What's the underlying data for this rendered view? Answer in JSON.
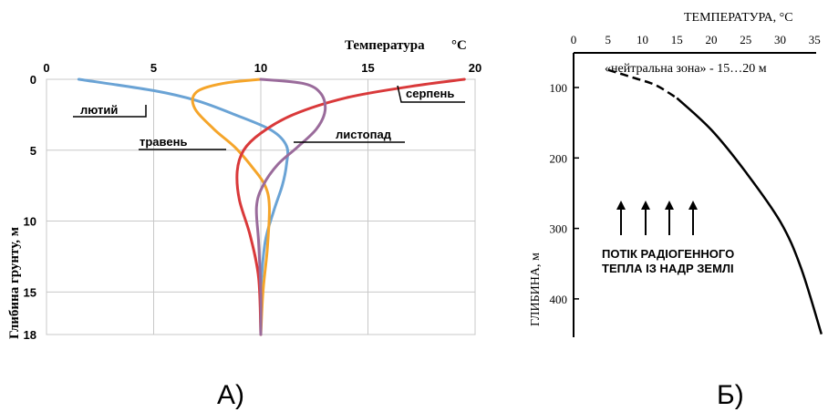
{
  "chart_data": [
    {
      "type": "line",
      "panel_label": "А)",
      "title": "Температура",
      "title_unit": "°C",
      "ylabel": "Глибина грунту, м",
      "xlim": [
        0,
        20
      ],
      "ylim": [
        18,
        0
      ],
      "x_ticks": [
        "0",
        "5",
        "10",
        "15",
        "20"
      ],
      "y_ticks": [
        "0",
        "5",
        "10",
        "15",
        "18"
      ],
      "grid": true,
      "series": [
        {
          "name": "лютий",
          "color": "#6aa3d5",
          "points": [
            [
              1.5,
              0
            ],
            [
              5,
              0.8
            ],
            [
              7,
              1.5
            ],
            [
              8.8,
              2.5
            ],
            [
              10.5,
              3.6
            ],
            [
              11.2,
              4.7
            ],
            [
              11.2,
              6
            ],
            [
              11,
              7.5
            ],
            [
              10.6,
              9.3
            ],
            [
              10.2,
              11.5
            ],
            [
              10,
              15
            ],
            [
              10,
              18
            ]
          ]
        },
        {
          "name": "травень",
          "color": "#f5a52a",
          "points": [
            [
              10,
              0
            ],
            [
              8.2,
              0.3
            ],
            [
              7,
              0.9
            ],
            [
              6.9,
              2
            ],
            [
              7.8,
              3.5
            ],
            [
              8.8,
              4.8
            ],
            [
              9.6,
              6.2
            ],
            [
              10.2,
              7.5
            ],
            [
              10.4,
              9
            ],
            [
              10.3,
              12
            ],
            [
              10.1,
              15
            ],
            [
              10,
              18
            ]
          ]
        },
        {
          "name": "серпень",
          "color": "#d9393a",
          "points": [
            [
              19.5,
              0
            ],
            [
              17,
              0.5
            ],
            [
              14,
              1.3
            ],
            [
              11.5,
              2.5
            ],
            [
              10,
              3.8
            ],
            [
              9.2,
              5
            ],
            [
              8.9,
              6.5
            ],
            [
              9,
              8.5
            ],
            [
              9.5,
              11
            ],
            [
              9.9,
              14
            ],
            [
              10,
              18
            ]
          ]
        },
        {
          "name": "листопад",
          "color": "#9a6b9b",
          "points": [
            [
              10,
              0
            ],
            [
              12,
              0.3
            ],
            [
              12.8,
              1
            ],
            [
              13,
              2.2
            ],
            [
              12.6,
              3.5
            ],
            [
              11.7,
              4.8
            ],
            [
              10.8,
              6
            ],
            [
              10.1,
              7.5
            ],
            [
              9.8,
              9
            ],
            [
              9.9,
              11.5
            ],
            [
              10,
              15
            ],
            [
              10,
              18
            ]
          ]
        }
      ]
    },
    {
      "type": "line",
      "panel_label": "Б)",
      "title": "ТЕМПЕРАТУРА, °С",
      "ylabel": "ГЛИБИНА, м",
      "xlim": [
        0,
        37
      ],
      "ylim": [
        450,
        50
      ],
      "x_ticks": [
        "0",
        "5",
        "10",
        "15",
        "20",
        "25",
        "30",
        "35"
      ],
      "y_ticks": [
        "100",
        "200",
        "300",
        "400"
      ],
      "annotation_top": "«нейтральна зона» - 15…20 м",
      "annotation_flux": "ПОТІК РАДІОГЕННОГО ТЕПЛА ІЗ НАДР ЗЕМЛІ",
      "series": [
        {
          "dashed_points": [
            [
              5,
              75
            ],
            [
              9,
              87
            ],
            [
              12,
              97
            ],
            [
              15,
              115
            ]
          ],
          "solid_points": [
            [
              15,
              115
            ],
            [
              20,
              160
            ],
            [
              25,
              220
            ],
            [
              30,
              290
            ],
            [
              33,
              355
            ],
            [
              36,
              450
            ]
          ]
        }
      ]
    }
  ]
}
